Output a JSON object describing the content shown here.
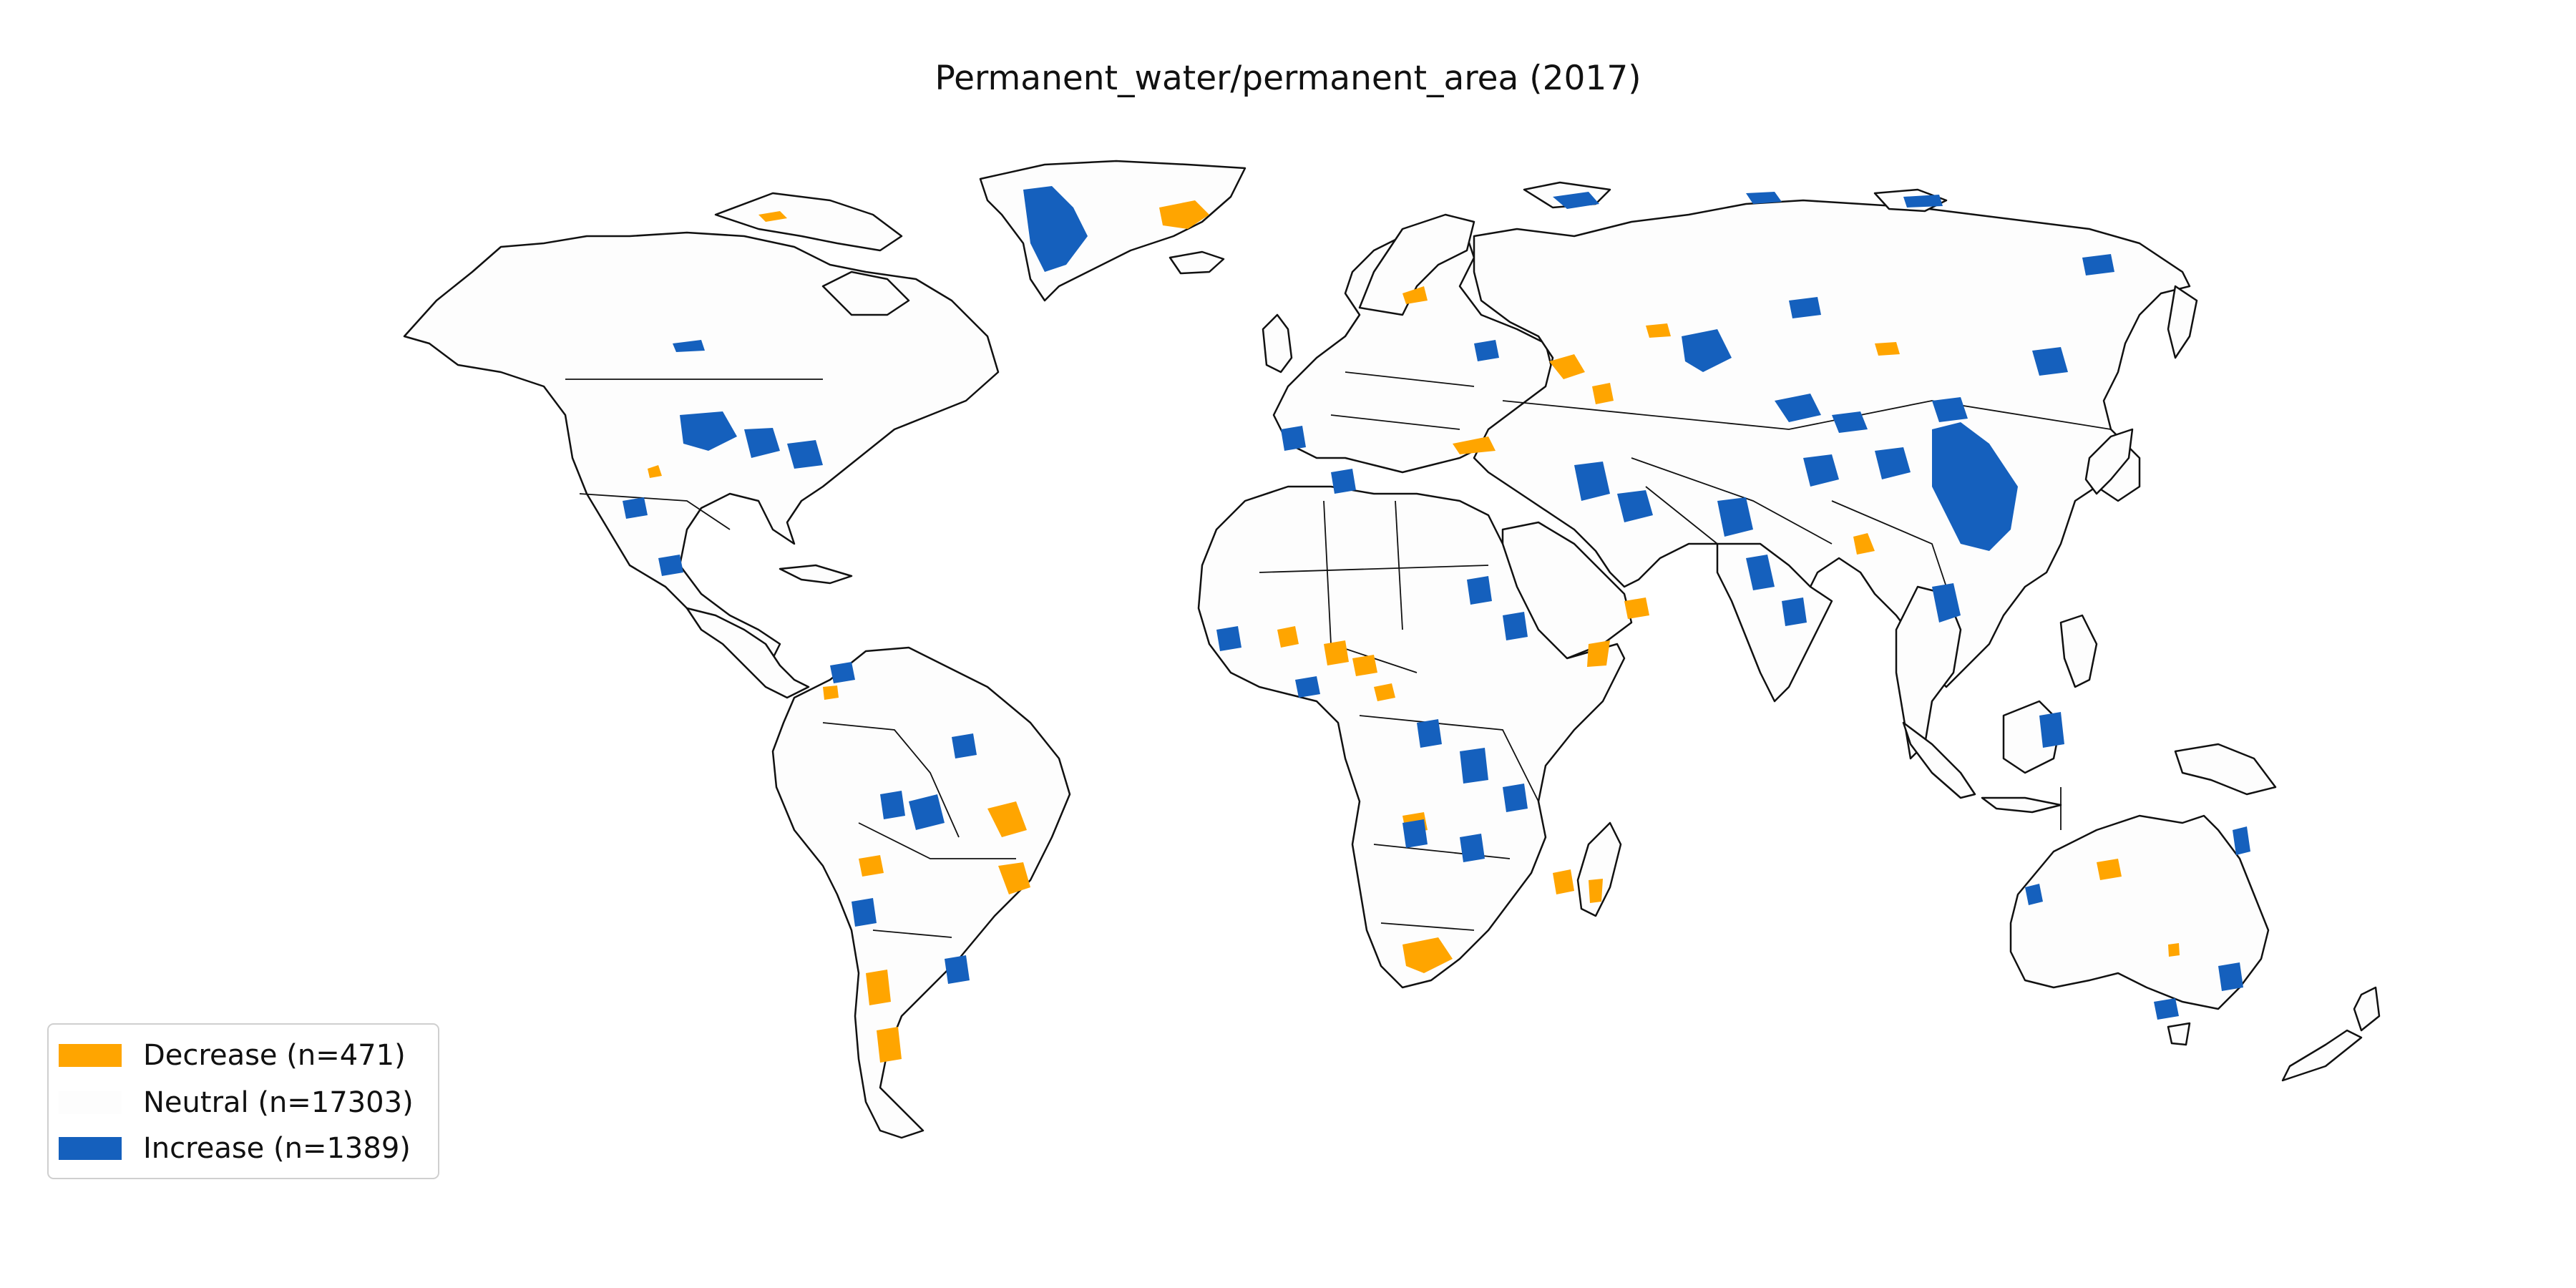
{
  "title": "Permanent_water/permanent_area (2017)",
  "colors": {
    "decrease": "#ffa500",
    "neutral": "#fdfdfd",
    "increase": "#1560bd",
    "outline": "#111111"
  },
  "legend": {
    "placement": "lower-left",
    "items": [
      {
        "key": "decrease",
        "label": "Decrease (n=471)",
        "color": "#ffa500"
      },
      {
        "key": "neutral",
        "label": "Neutral (n=17303)",
        "color": "#fdfdfd"
      },
      {
        "key": "increase",
        "label": "Increase (n=1389)",
        "color": "#1560bd"
      }
    ]
  },
  "categories": [
    {
      "name": "Decrease",
      "count": 471
    },
    {
      "name": "Neutral",
      "count": 17303
    },
    {
      "name": "Increase",
      "count": 1389
    }
  ]
}
